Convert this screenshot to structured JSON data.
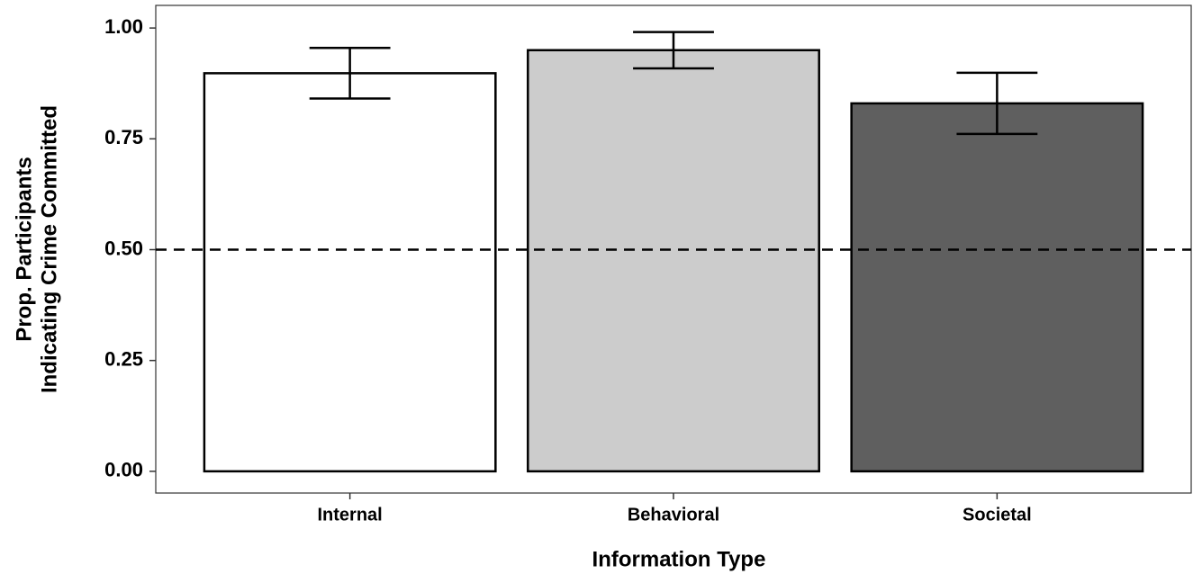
{
  "chart_data": {
    "type": "bar",
    "categories": [
      "Internal",
      "Behavioral",
      "Societal"
    ],
    "values": [
      0.898,
      0.95,
      0.83
    ],
    "errors": [
      0.057,
      0.041,
      0.069
    ],
    "colors": [
      "#ffffff",
      "#cccccc",
      "#5f5f5f"
    ],
    "x_label": "Information Type",
    "y_label": [
      "Prop. Participants",
      "Indicating Crime Committed"
    ],
    "ylim": [
      -0.049,
      1.051
    ],
    "yticks": [
      {
        "value": 0,
        "label": "0.00"
      },
      {
        "value": 0.25,
        "label": "0.25"
      },
      {
        "value": 0.5,
        "label": "0.50"
      },
      {
        "value": 0.75,
        "label": "0.75"
      },
      {
        "value": 1,
        "label": "1.00"
      }
    ],
    "hline": 0.5,
    "grid": false
  }
}
